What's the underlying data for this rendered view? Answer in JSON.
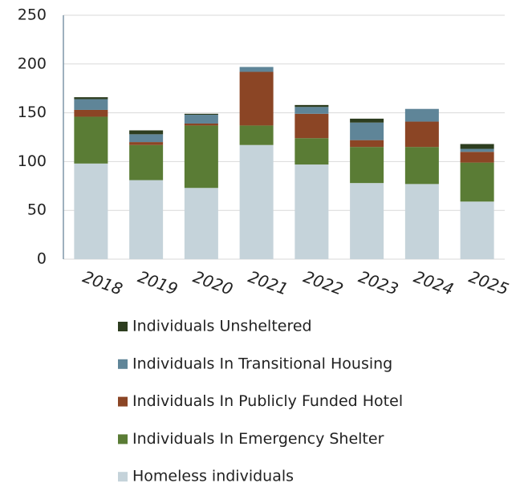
{
  "chart_data": {
    "type": "stacked_bar",
    "categories": [
      "2018",
      "2019",
      "2020",
      "2021",
      "2022",
      "2023",
      "2024",
      "2025"
    ],
    "series": [
      {
        "name": "Homeless individuals",
        "color": "#c5d3da",
        "values": [
          98,
          81,
          73,
          117,
          97,
          78,
          77,
          59
        ]
      },
      {
        "name": "Individuals In Emergency Shelter",
        "color": "#5a7c35",
        "values": [
          48,
          36,
          64,
          20,
          27,
          37,
          38,
          40
        ]
      },
      {
        "name": "Individuals In Publicly Funded Hotel",
        "color": "#8b4525",
        "values": [
          7,
          3,
          2,
          55,
          25,
          7,
          26,
          11
        ]
      },
      {
        "name": "Individuals In Transitional Housing",
        "color": "#5f8598",
        "values": [
          11,
          8,
          9,
          5,
          7,
          18,
          13,
          3
        ]
      },
      {
        "name": "Individuals Unsheltered",
        "color": "#2d3d1f",
        "values": [
          2,
          4,
          1,
          0,
          2,
          4,
          0,
          5
        ]
      }
    ],
    "ylim": [
      0,
      250
    ],
    "yticks": [
      0,
      50,
      100,
      150,
      200,
      250
    ],
    "grid": true
  }
}
